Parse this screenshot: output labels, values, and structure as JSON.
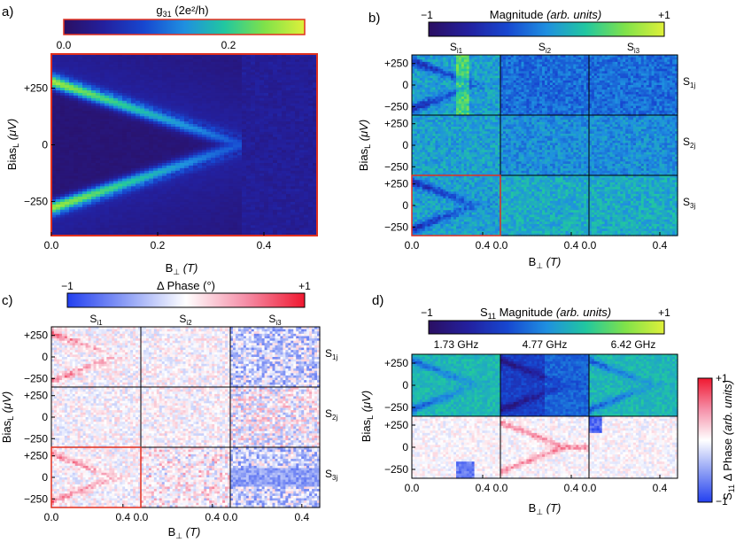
{
  "colors": {
    "mag": [
      "#2b0f62",
      "#23209e",
      "#1747d0",
      "#1f8fe0",
      "#21c7a0",
      "#7fe24a",
      "#dff03a"
    ],
    "phase": [
      "#2340f0",
      "#8fa0f5",
      "#ffffff",
      "#f58fa8",
      "#f01830"
    ],
    "highlight": "#e0301e"
  },
  "panels": {
    "a": {
      "label": "a)"
    },
    "b": {
      "label": "b)"
    },
    "c": {
      "label": "c)"
    },
    "d": {
      "label": "d)"
    }
  },
  "chart_data": [
    {
      "id": "a",
      "type": "heatmap",
      "title": "g",
      "title_sub": "31",
      "title_unit": "(2e²/h)",
      "colorbar": {
        "range": [
          0.0,
          0.28
        ],
        "ticks": [
          "0.0",
          "0.2"
        ]
      },
      "xlabel": "B",
      "xlabel_sub": "⊥",
      "xlabel_unit": "(T)",
      "ylabel": "Bias",
      "ylabel_sub": "L",
      "ylabel_unit": "(μV)",
      "x_range": [
        0.0,
        0.5
      ],
      "y_range": [
        -400,
        400
      ],
      "xticks": [
        {
          "v": 0.0,
          "t": "0.0"
        },
        {
          "v": 0.2,
          "t": "0.2"
        },
        {
          "v": 0.4,
          "t": "0.4"
        }
      ],
      "yticks": [
        {
          "v": 250,
          "t": "+250"
        },
        {
          "v": 0,
          "t": "0"
        },
        {
          "v": -250,
          "t": "−250"
        }
      ],
      "feature": "bright resonance curving from ±280 μV at B=0 toward 0 μV near B≈0.35 T; gap region dark"
    },
    {
      "id": "b",
      "type": "heatmap",
      "title": "Magnitude",
      "title_unit": "(arb. units)",
      "colorbar": {
        "range": [
          -1,
          1
        ],
        "ticks": [
          "−1",
          "+1"
        ]
      },
      "columns": [
        {
          "t": "S",
          "s": "i1"
        },
        {
          "t": "S",
          "s": "i2"
        },
        {
          "t": "S",
          "s": "i3"
        }
      ],
      "rows": [
        {
          "t": "S",
          "s": "1j"
        },
        {
          "t": "S",
          "s": "2j"
        },
        {
          "t": "S",
          "s": "3j"
        }
      ],
      "xlabel": "B",
      "xlabel_sub": "⊥",
      "xlabel_unit": "(T)",
      "ylabel": "Bias",
      "ylabel_sub": "L",
      "ylabel_unit": "(μV)",
      "x_range": [
        0.0,
        0.5
      ],
      "y_range": [
        -350,
        350
      ],
      "xticks": [
        {
          "v": 0.0,
          "t": "0.0"
        },
        {
          "v": 0.4,
          "t": "0.4"
        }
      ],
      "yticks": [
        {
          "v": 250,
          "t": "+250"
        },
        {
          "v": 0,
          "t": "0"
        },
        {
          "v": -250,
          "t": "−250"
        }
      ]
    },
    {
      "id": "c",
      "type": "heatmap",
      "title": "Δ Phase",
      "title_unit": "(°)",
      "colorbar": {
        "range": [
          -1,
          1
        ],
        "ticks": [
          "−1",
          "+1"
        ]
      },
      "columns": [
        {
          "t": "S",
          "s": "i1"
        },
        {
          "t": "S",
          "s": "i2"
        },
        {
          "t": "S",
          "s": "i3"
        }
      ],
      "rows": [
        {
          "t": "S",
          "s": "1j"
        },
        {
          "t": "S",
          "s": "2j"
        },
        {
          "t": "S",
          "s": "3j"
        }
      ],
      "xlabel": "B",
      "xlabel_sub": "⊥",
      "xlabel_unit": "(T)",
      "ylabel": "Bias",
      "ylabel_sub": "L",
      "ylabel_unit": "(μV)",
      "x_range": [
        0.0,
        0.5
      ],
      "y_range": [
        -350,
        350
      ],
      "xticks": [
        {
          "v": 0.0,
          "t": "0.0"
        },
        {
          "v": 0.4,
          "t": "0.4"
        }
      ],
      "yticks": [
        {
          "v": 250,
          "t": "+250"
        },
        {
          "v": 0,
          "t": "0"
        },
        {
          "v": -250,
          "t": "−250"
        }
      ]
    },
    {
      "id": "d",
      "type": "heatmap",
      "title": "S",
      "title_sub": "11",
      "title_mid": "Magnitude",
      "title_unit": "(arb. units)",
      "colorbar": {
        "range": [
          -1,
          1
        ],
        "ticks": [
          "−1",
          "+1"
        ]
      },
      "side_colorbar": {
        "title": "S",
        "title_sub": "11",
        "title_mid": "Δ Phase",
        "title_unit": "(arb. units)",
        "ticks": [
          "+1",
          "−1"
        ]
      },
      "columns": [
        {
          "t": "1.73 GHz"
        },
        {
          "t": "4.77 GHz"
        },
        {
          "t": "6.42 GHz"
        }
      ],
      "xlabel": "B",
      "xlabel_sub": "⊥",
      "xlabel_unit": "(T)",
      "ylabel": "Bias",
      "ylabel_sub": "L",
      "ylabel_unit": "(μV)",
      "x_range": [
        0.0,
        0.5
      ],
      "y_range": [
        -350,
        350
      ],
      "xticks": [
        {
          "v": 0.0,
          "t": "0.0"
        },
        {
          "v": 0.4,
          "t": "0.4"
        }
      ],
      "yticks": [
        {
          "v": 250,
          "t": "+250"
        },
        {
          "v": 0,
          "t": "0"
        },
        {
          "v": -250,
          "t": "−250"
        }
      ]
    }
  ]
}
